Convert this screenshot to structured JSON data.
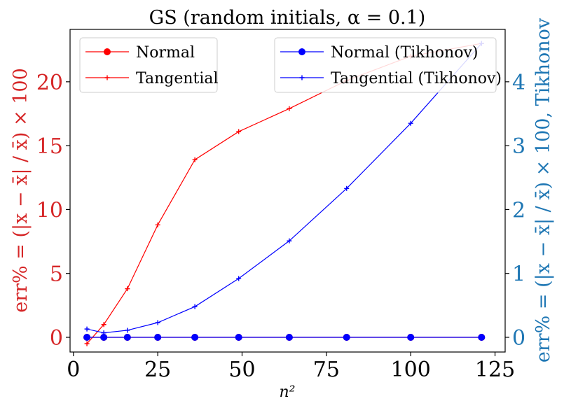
{
  "chart_data": {
    "type": "line",
    "title": "GS (random initials, α = 0.1)",
    "xlabel": "n²",
    "ylabel_left": "err% = (|x − x̄| / x̄) × 100",
    "ylabel_right": "err% = (|x − x̄| / x̄) × 100, Tikhonov",
    "xlim": [
      -1,
      128
    ],
    "ylim_left": [
      -1.15,
      24.1
    ],
    "ylim_right": [
      -0.23,
      4.82
    ],
    "x_ticks": [
      0,
      25,
      50,
      75,
      100,
      125
    ],
    "y_ticks_left": [
      0,
      5,
      10,
      15,
      20
    ],
    "y_ticks_right": [
      0,
      1,
      2,
      3,
      4
    ],
    "x": [
      4,
      9,
      16,
      25,
      36,
      49,
      64,
      81,
      100,
      121
    ],
    "grid": false,
    "series": [
      {
        "name": "Normal",
        "axis": "left",
        "color": "#ff0000",
        "marker": "circle",
        "values": [
          0,
          0,
          0,
          0,
          0,
          0,
          0,
          0,
          0,
          0
        ]
      },
      {
        "name": "Tangential",
        "axis": "left",
        "color": "#ff0000",
        "marker": "plus",
        "values": [
          -0.5,
          1.0,
          3.8,
          8.8,
          13.9,
          16.1,
          17.9,
          20.1,
          22.0,
          23.0
        ]
      },
      {
        "name": "Normal (Tikhonov)",
        "axis": "right",
        "color": "#0000ff",
        "marker": "circle",
        "values": [
          0,
          0,
          0,
          0,
          0,
          0,
          0,
          0,
          0,
          0
        ]
      },
      {
        "name": "Tangential (Tikhonov)",
        "axis": "right",
        "color": "#0000ff",
        "marker": "plus",
        "values": [
          0.13,
          0.07,
          0.11,
          0.23,
          0.48,
          0.92,
          1.51,
          2.33,
          3.35,
          4.6
        ]
      }
    ],
    "legends": [
      {
        "placement": "upper-left",
        "entries": [
          "Normal",
          "Tangential"
        ]
      },
      {
        "placement": "upper-right",
        "entries": [
          "Normal (Tikhonov)",
          "Tangential (Tikhonov)"
        ]
      }
    ]
  }
}
